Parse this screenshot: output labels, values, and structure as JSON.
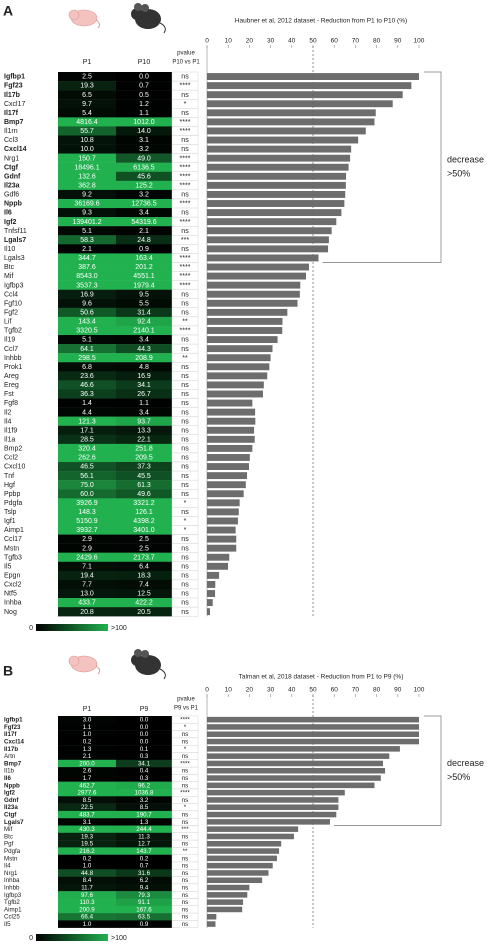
{
  "chart_data": [
    {
      "type": "bar",
      "label": "A",
      "title": "Haubner et al, 2012 dataset - Reduction from P1 to P10 (%)",
      "pvalue_header": [
        "pvalue",
        "P10 vs P1"
      ],
      "categories": [
        "Igfbp1",
        "Fgf23",
        "Il17b",
        "Cxcl17",
        "Il17f",
        "Bmp7",
        "Il1rn",
        "Ccl3",
        "Cxcl14",
        "Nrg1",
        "Ctgf",
        "Gdnf",
        "Il23a",
        "Gdf6",
        "Nppb",
        "Il6",
        "Igf2",
        "Tnfsf11",
        "Lgals7",
        "Il10",
        "Lgals3",
        "Btc",
        "Mif",
        "Igfbp3",
        "Ccl4",
        "Fgf10",
        "Fgf2",
        "Lif",
        "Tgfb2",
        "Il19",
        "Ccl7",
        "Inhbb",
        "Prok1",
        "Areg",
        "Ereg",
        "Fst",
        "Fgf8",
        "Il2",
        "Il4",
        "Il1f9",
        "Il1a",
        "Bmp2",
        "Ccl2",
        "Cxcl10",
        "Tnf",
        "Hgf",
        "Ppbp",
        "Pdgfa",
        "Tslp",
        "Igf1",
        "Aimp1",
        "Ccl17",
        "Mstn",
        "Tgfb3",
        "Il5",
        "Epgn",
        "Cxcl2",
        "Ntf5",
        "Inhba",
        "Nog"
      ],
      "bold": [
        true,
        true,
        true,
        false,
        true,
        true,
        false,
        false,
        true,
        false,
        true,
        true,
        true,
        false,
        true,
        true,
        true,
        false,
        true,
        false,
        false,
        false,
        false,
        false,
        false,
        false,
        false,
        false,
        false,
        false,
        false,
        false,
        false,
        false,
        false,
        false,
        false,
        false,
        false,
        false,
        false,
        false,
        false,
        false,
        false,
        false,
        false,
        false,
        false,
        false,
        false,
        false,
        false,
        false,
        false,
        false,
        false,
        false,
        false,
        false
      ],
      "heatmap": {
        "series": [
          {
            "name": "P1",
            "values": [
              2.5,
              19.3,
              6.5,
              9.7,
              5.4,
              4816.4,
              55.7,
              10.8,
              10.0,
              150.7,
              18496.1,
              132.6,
              362.8,
              9.2,
              36169.6,
              9.3,
              139401.2,
              5.1,
              58.3,
              2.1,
              344.7,
              387.6,
              8543.0,
              3537.3,
              16.9,
              9.6,
              50.6,
              143.4,
              3320.5,
              5.1,
              64.1,
              298.5,
              6.8,
              23.6,
              46.6,
              36.3,
              1.4,
              4.4,
              121.3,
              17.1,
              28.5,
              320.4,
              262.6,
              46.5,
              56.1,
              75.0,
              60.0,
              3926.9,
              148.3,
              5150.9,
              3932.7,
              2.9,
              2.9,
              2429.6,
              7.1,
              19.4,
              7.7,
              13.0,
              433.7,
              20.8
            ],
            "value_labels": [
              "2.5",
              "19.3",
              "6.5",
              "9.7",
              "5.4",
              "4816.4",
              "55.7",
              "10.8",
              "10.0",
              "150.7",
              "18496.1",
              "132.6",
              "362.8",
              "9.2",
              "36169.6",
              "9.3",
              "139401.2",
              "5.1",
              "58.3",
              "2.1",
              "344.7",
              "387.6",
              "8543.0",
              "3537.3",
              "16.9",
              "9.6",
              "50.6",
              "143.4",
              "3320.5",
              "5.1",
              "64.1",
              "298.5",
              "6.8",
              "23.6",
              "46.6",
              "36.3",
              "1.4",
              "4.4",
              "121.3",
              "17.1",
              "28.5",
              "320.4",
              "262.6",
              "46.5",
              "56.1",
              "75.0",
              "60.0",
              "3926.9",
              "148.3",
              "5150.9",
              "3932.7",
              "2.9",
              "2.9",
              "2429.6",
              "7.1",
              "19.4",
              "7.7",
              "13.0",
              "433.7",
              "20.8"
            ]
          },
          {
            "name": "P10",
            "values": [
              0.0,
              0.7,
              0.5,
              1.2,
              1.1,
              1012.0,
              14.0,
              3.1,
              3.2,
              49.0,
              6136.5,
              45.6,
              125.2,
              3.2,
              12736.5,
              3.4,
              54319.6,
              2.1,
              24.8,
              0.9,
              163.4,
              201.2,
              4551.1,
              1979.4,
              9.5,
              5.5,
              31.4,
              92.4,
              2140.1,
              3.4,
              44.3,
              208.9,
              4.8,
              16.9,
              34.1,
              26.7,
              1.1,
              3.4,
              93.7,
              13.3,
              22.1,
              251.8,
              209.5,
              37.3,
              45.5,
              61.3,
              49.6,
              3321.2,
              126.1,
              4398.2,
              3401.0,
              2.5,
              2.5,
              2173.7,
              6.4,
              18.3,
              7.4,
              12.5,
              422.2,
              20.5
            ],
            "value_labels": [
              "0.0",
              "0.7",
              "0.5",
              "1.2",
              "1.1",
              "1012.0",
              "14.0",
              "3.1",
              "3.2",
              "49.0",
              "6136.5",
              "45.6",
              "125.2",
              "3.2",
              "12736.5",
              "3.4",
              "54319.6",
              "2.1",
              "24.8",
              "0.9",
              "163.4",
              "201.2",
              "4551.1",
              "1979.4",
              "9.5",
              "5.5",
              "31.4",
              "92.4",
              "2140.1",
              "3.4",
              "44.3",
              "208.9",
              "4.8",
              "16.9",
              "34.1",
              "26.7",
              "1.1",
              "3.4",
              "93.7",
              "13.3",
              "22.1",
              "251.8",
              "209.5",
              "37.3",
              "45.5",
              "61.3",
              "49.6",
              "3321.2",
              "126.1",
              "4398.2",
              "3401.0",
              "2.5",
              "2.5",
              "2173.7",
              "6.4",
              "18.3",
              "7.4",
              "12.5",
              "422.2",
              "20.5"
            ]
          }
        ],
        "colors": [
          "#000000",
          "#22b14f"
        ],
        "clim": [
          0,
          100
        ],
        "colorbar_ticks": [
          0,
          {
            "value": 100,
            "label": ">100"
          }
        ]
      },
      "pvalues": [
        "ns",
        "****",
        "ns",
        "*",
        "ns",
        "****",
        "****",
        "ns",
        "ns",
        "****",
        "****",
        "****",
        "****",
        "ns",
        "****",
        "ns",
        "****",
        "ns",
        "***",
        "ns",
        "****",
        "****",
        "****",
        "****",
        "ns",
        "ns",
        "ns",
        "**",
        "****",
        "ns",
        "ns",
        "**",
        "ns",
        "ns",
        "ns",
        "ns",
        "ns",
        "ns",
        "ns",
        "ns",
        "ns",
        "ns",
        "ns",
        "ns",
        "ns",
        "ns",
        "ns",
        "*",
        "ns",
        "*",
        "*",
        "ns",
        "ns",
        "ns",
        "ns",
        "ns",
        "ns",
        "ns",
        "ns",
        "ns"
      ],
      "values": [
        100,
        96.4,
        92.3,
        87.6,
        79.6,
        79,
        74.9,
        71.3,
        68,
        67.5,
        66.8,
        65.6,
        65.5,
        65.2,
        64.8,
        63.4,
        61,
        58.8,
        57.5,
        57.1,
        52.6,
        48.1,
        46.7,
        44,
        43.8,
        42.7,
        37.9,
        35.6,
        35.5,
        33.3,
        30.9,
        30,
        29.4,
        28.4,
        26.8,
        26.4,
        21.4,
        22.7,
        22.8,
        22.2,
        22.5,
        21.4,
        20.2,
        19.8,
        18.9,
        18.3,
        17.3,
        15.4,
        15,
        14.6,
        13.5,
        13.8,
        13.8,
        10.5,
        9.9,
        5.7,
        3.9,
        3.8,
        2.7,
        1.4
      ],
      "color": "#6d6d6d",
      "xlim": [
        0,
        100
      ],
      "xticks": [
        0,
        10,
        20,
        30,
        40,
        50,
        60,
        70,
        80,
        90,
        100
      ],
      "threshold": 50,
      "annotation": [
        "decrease",
        ">50%"
      ]
    },
    {
      "type": "bar",
      "label": "B",
      "title": "Talman et al, 2018 dataset - Reduction from P1 to P9 (%)",
      "pvalue_header": [
        "pvalue",
        "P9 vs P1"
      ],
      "categories": [
        "Igfbp1",
        "Fgf23",
        "Il17f",
        "Cxcl14",
        "Il17b",
        "Artn",
        "Bmp7",
        "Il1b",
        "Il6",
        "Nppb",
        "Igf2",
        "Gdnf",
        "Il23a",
        "Ctgf",
        "Lgals7",
        "Mif",
        "Btc",
        "Pgf",
        "Pdgfa",
        "Mstn",
        "Il4",
        "Nrg1",
        "Inhba",
        "Inhbb",
        "Igfbp3",
        "Tgfb2",
        "Aimp1",
        "Ccl25",
        "Il5"
      ],
      "bold": [
        true,
        true,
        true,
        true,
        true,
        false,
        true,
        false,
        true,
        true,
        true,
        true,
        true,
        true,
        true,
        false,
        false,
        false,
        false,
        false,
        false,
        false,
        false,
        false,
        false,
        false,
        false,
        false,
        false
      ],
      "heatmap": {
        "series": [
          {
            "name": "P1",
            "values": [
              3.0,
              1.1,
              1.0,
              0.2,
              1.3,
              2.1,
              200.0,
              2.6,
              1.7,
              462.7,
              2977.6,
              8.5,
              22.5,
              483.7,
              3.1,
              430.3,
              19.3,
              19.5,
              216.2,
              0.2,
              1.0,
              44.8,
              8.4,
              11.7,
              97.6,
              110.3,
              200.9,
              66.4,
              1.0
            ],
            "value_labels": [
              "3.0",
              "1.1",
              "1.0",
              "0.2",
              "1.3",
              "2.1",
              "200.0",
              "2.6",
              "1.7",
              "462.7",
              "2977.6",
              "8.5",
              "22.5",
              "483.7",
              "3.1",
              "430.3",
              "19.3",
              "19.5",
              "216.2",
              "0.2",
              "1.0",
              "44.8",
              "8.4",
              "11.7",
              "97.6",
              "110.3",
              "200.9",
              "66.4",
              "1.0"
            ]
          },
          {
            "name": "P9",
            "values": [
              0.0,
              0.0,
              0.0,
              0.0,
              0.1,
              0.3,
              34.1,
              0.4,
              0.3,
              96.2,
              1036.8,
              3.2,
              8.5,
              190.7,
              1.3,
              244.4,
              11.3,
              12.7,
              143.7,
              0.2,
              0.7,
              31.6,
              6.2,
              9.4,
              79.3,
              91.1,
              167.6,
              63.5,
              0.9
            ],
            "value_labels": [
              "0.0",
              "0.0",
              "0.0",
              "0.0",
              "0.1",
              "0.3",
              "34.1",
              "0.4",
              "0.3",
              "96.2",
              "1036.8",
              "3.2",
              "8.5",
              "190.7",
              "1.3",
              "244.4",
              "11.3",
              "12.7",
              "143.7",
              "0.2",
              "0.7",
              "31.6",
              "6.2",
              "9.4",
              "79.3",
              "91.1",
              "167.6",
              "63.5",
              "0.9"
            ]
          }
        ],
        "colors": [
          "#000000",
          "#22b14f"
        ],
        "clim": [
          0,
          100
        ],
        "colorbar_ticks": [
          0,
          {
            "value": 100,
            "label": ">100"
          }
        ]
      },
      "pvalues": [
        "****",
        "*",
        "ns",
        "ns",
        "*",
        "ns",
        "****",
        "ns",
        "ns",
        "ns",
        "****",
        "ns",
        "*",
        "ns",
        "ns",
        "***",
        "ns",
        "ns",
        "**",
        "ns",
        "ns",
        "ns",
        "ns",
        "ns",
        "ns",
        "ns",
        "ns",
        "ns",
        "ns"
      ],
      "values": [
        100,
        100,
        100,
        100,
        91,
        86,
        83,
        84,
        82,
        79,
        65,
        62,
        62,
        61,
        58,
        43,
        41,
        35,
        34,
        33,
        31,
        29,
        26,
        20,
        19,
        17,
        16.6,
        4.4,
        4
      ],
      "color": "#6d6d6d",
      "xlim": [
        0,
        100
      ],
      "xticks": [
        0,
        10,
        20,
        30,
        40,
        50,
        60,
        70,
        80,
        90,
        100
      ],
      "threshold": 50,
      "annotation": [
        "decrease",
        ">50%"
      ]
    }
  ]
}
